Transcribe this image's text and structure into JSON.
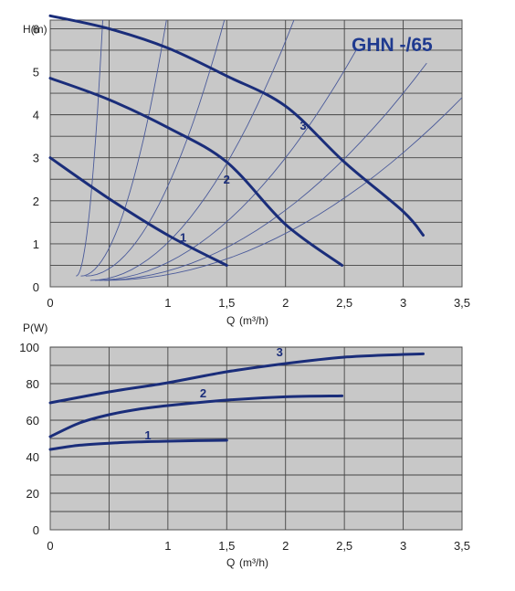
{
  "chart_data": [
    {
      "type": "line",
      "title": "GHN -/65",
      "xlabel": "Q",
      "xunit": "(m³/h)",
      "ylabel": "H(m)",
      "xlim": [
        0,
        3.5
      ],
      "ylim": [
        0,
        6.2
      ],
      "xticks": [
        "0",
        "1",
        "1,5",
        "2",
        "2,5",
        "3",
        "3,5"
      ],
      "xtick_values": [
        0,
        1,
        1.5,
        2,
        2.5,
        3,
        3.5
      ],
      "yticks": [
        "0",
        "1",
        "2",
        "3",
        "4",
        "5",
        "6"
      ],
      "ytick_values": [
        0,
        1,
        2,
        3,
        4,
        5,
        6
      ],
      "grid": true,
      "background": "#c8c8c8",
      "series_color": "#1a2d7a",
      "series": [
        {
          "name": "1",
          "x": [
            0,
            0.5,
            1.0,
            1.5
          ],
          "y": [
            3.0,
            2.05,
            1.2,
            0.5
          ]
        },
        {
          "name": "2",
          "x": [
            0,
            0.5,
            1.0,
            1.5,
            2.0,
            2.48
          ],
          "y": [
            4.85,
            4.35,
            3.7,
            2.9,
            1.45,
            0.5
          ]
        },
        {
          "name": "3",
          "x": [
            0,
            0.5,
            1.0,
            1.5,
            2.0,
            2.5,
            3.0,
            3.17
          ],
          "y": [
            6.3,
            6.0,
            5.55,
            4.9,
            4.2,
            2.9,
            1.75,
            1.2
          ]
        }
      ],
      "system_curves": {
        "color": "#4a5a9a",
        "x_end": [
          0.45,
          1.0,
          1.5,
          2.1,
          2.6,
          3.2,
          3.5
        ],
        "y_end": [
          6.4,
          6.4,
          6.4,
          6.4,
          5.5,
          5.2,
          4.4
        ]
      }
    },
    {
      "type": "line",
      "xlabel": "Q",
      "xunit": "(m³/h)",
      "ylabel": "P(W)",
      "xlim": [
        0,
        3.5
      ],
      "ylim": [
        0,
        100
      ],
      "xticks": [
        "0",
        "1",
        "1,5",
        "2",
        "2,5",
        "3",
        "3,5"
      ],
      "xtick_values": [
        0,
        1,
        1.5,
        2,
        2.5,
        3,
        3.5
      ],
      "yticks": [
        "0",
        "20",
        "40",
        "60",
        "80",
        "100"
      ],
      "ytick_values": [
        0,
        20,
        40,
        60,
        80,
        100
      ],
      "grid": true,
      "background": "#c8c8c8",
      "series_color": "#1a2d7a",
      "series": [
        {
          "name": "1",
          "x": [
            0,
            0.25,
            0.5,
            0.75,
            1.0,
            1.25,
            1.5
          ],
          "y": [
            44,
            46.3,
            47.4,
            48.1,
            48.5,
            48.8,
            49
          ]
        },
        {
          "name": "2",
          "x": [
            0,
            0.25,
            0.5,
            0.75,
            1.0,
            1.5,
            2.0,
            2.48
          ],
          "y": [
            51,
            58.5,
            63,
            66,
            68,
            71,
            72.8,
            73.3
          ]
        },
        {
          "name": "3",
          "x": [
            0,
            0.5,
            1.0,
            1.5,
            2.0,
            2.5,
            3.0,
            3.17
          ],
          "y": [
            69.5,
            75.5,
            80.5,
            86.5,
            91,
            94.5,
            96,
            96.3
          ]
        }
      ]
    }
  ]
}
